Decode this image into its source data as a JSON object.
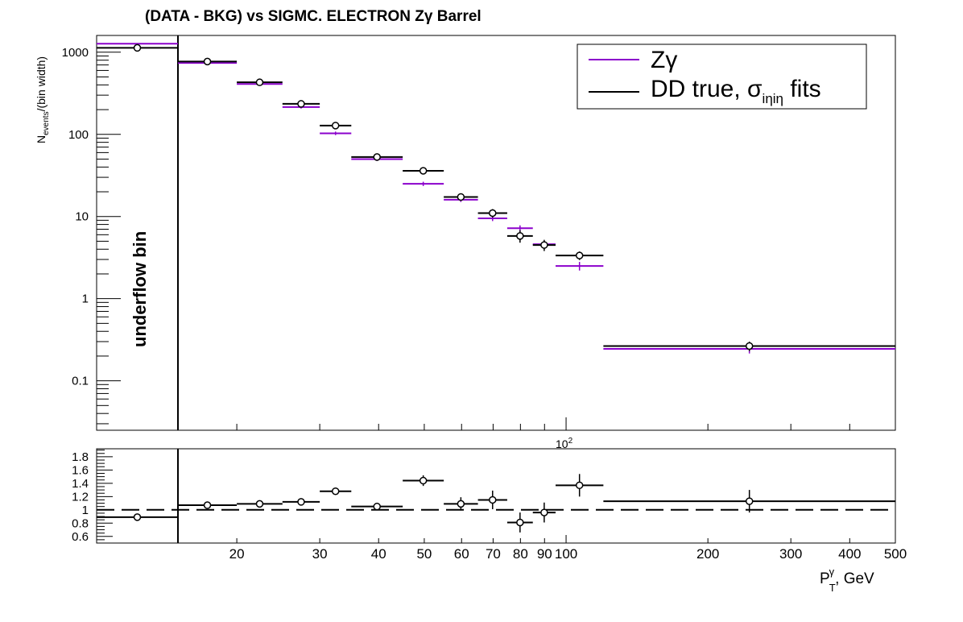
{
  "chart_data": [
    {
      "type": "line",
      "title": "(DATA - BKG) vs SIGMC. ELECTRON Zγ  Barrel",
      "ylabel_main": "N",
      "ylabel_sub": "events",
      "ylabel_rest": "/(bin width)",
      "xscale": "log",
      "yscale": "log",
      "ylim": [
        0.025,
        1600
      ],
      "y_ticks": [
        {
          "v": 0.1,
          "label": "0.1"
        },
        {
          "v": 1,
          "label": "1"
        },
        {
          "v": 10,
          "label": "10"
        },
        {
          "v": 100,
          "label": "100"
        },
        {
          "v": 1000,
          "label": "1000"
        }
      ],
      "x_exponent_label": "10",
      "x_exponent_sup": "2",
      "underflow_label": "underflow bin",
      "legend": {
        "position": "top-right",
        "entries": [
          {
            "name": "Zγ",
            "color": "#8b00cc"
          },
          {
            "name": "DD true, ",
            "sigma": "σ",
            "sub": "iηiη",
            "suffix": " fits",
            "color": "#000000"
          }
        ]
      },
      "bins": [
        {
          "lo": 15,
          "hi": 20
        },
        {
          "lo": 20,
          "hi": 25
        },
        {
          "lo": 25,
          "hi": 30
        },
        {
          "lo": 30,
          "hi": 35
        },
        {
          "lo": 35,
          "hi": 45
        },
        {
          "lo": 45,
          "hi": 55
        },
        {
          "lo": 55,
          "hi": 65
        },
        {
          "lo": 65,
          "hi": 75
        },
        {
          "lo": 75,
          "hi": 85
        },
        {
          "lo": 85,
          "hi": 95
        },
        {
          "lo": 95,
          "hi": 120
        },
        {
          "lo": 120,
          "hi": 500
        }
      ],
      "underflow": {
        "data": 1130,
        "data_err": 60,
        "mc": 1270
      },
      "series": [
        {
          "name": "Zγ",
          "color": "#8b00cc",
          "values": [
            740,
            410,
            215,
            103,
            50,
            25,
            16,
            9.5,
            7.2,
            4.6,
            2.5,
            0.245
          ],
          "errors": [
            25,
            15,
            9,
            5,
            2.5,
            1.5,
            1,
            0.7,
            0.6,
            0.4,
            0.3,
            0.03
          ]
        },
        {
          "name": "DD true, σiηiη fits",
          "color": "#000000",
          "values": [
            770,
            430,
            235,
            128,
            53,
            36,
            17.3,
            11,
            5.8,
            4.5,
            3.35,
            0.265
          ],
          "errors": [
            30,
            20,
            12,
            9,
            4,
            3,
            1.8,
            1.3,
            1.0,
            0.7,
            0.4,
            0.035
          ]
        }
      ]
    },
    {
      "type": "scatter",
      "xlabel": "P",
      "xlabel_sup": "γ",
      "xlabel_sub": "T",
      "xlabel_rest": ", GeV",
      "ylim": [
        0.5,
        1.92
      ],
      "reference_line": 1,
      "y_ticks": [
        {
          "v": 0.6,
          "label": "0.6"
        },
        {
          "v": 0.8,
          "label": "0.8"
        },
        {
          "v": 1,
          "label": "1"
        },
        {
          "v": 1.2,
          "label": "1.2"
        },
        {
          "v": 1.4,
          "label": "1.4"
        },
        {
          "v": 1.6,
          "label": "1.6"
        },
        {
          "v": 1.8,
          "label": "1.8"
        }
      ],
      "x_ticks": [
        {
          "v": 20,
          "label": "20"
        },
        {
          "v": 30,
          "label": "30"
        },
        {
          "v": 40,
          "label": "40"
        },
        {
          "v": 50,
          "label": "50"
        },
        {
          "v": 60,
          "label": "60"
        },
        {
          "v": 70,
          "label": "70"
        },
        {
          "v": 80,
          "label": "80"
        },
        {
          "v": 90,
          "label": "90"
        },
        {
          "v": 100,
          "label": "100"
        },
        {
          "v": 200,
          "label": "200"
        },
        {
          "v": 300,
          "label": "300"
        },
        {
          "v": 400,
          "label": "400"
        },
        {
          "v": 500,
          "label": "500"
        }
      ],
      "underflow": {
        "value": 0.89,
        "error": 0.03
      },
      "values": [
        1.07,
        1.09,
        1.12,
        1.28,
        1.05,
        1.44,
        1.09,
        1.15,
        0.81,
        0.96,
        1.37,
        1.13
      ],
      "errors": [
        0.02,
        0.03,
        0.03,
        0.05,
        0.04,
        0.08,
        0.1,
        0.14,
        0.15,
        0.15,
        0.17,
        0.17
      ]
    }
  ]
}
